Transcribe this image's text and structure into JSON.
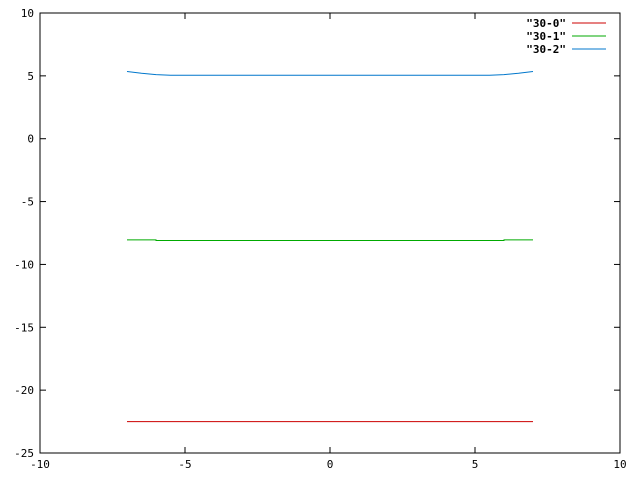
{
  "chart_data": {
    "type": "line",
    "title": "",
    "xlabel": "",
    "ylabel": "",
    "xlim": [
      -10,
      10
    ],
    "ylim": [
      -25,
      10
    ],
    "x_ticks": [
      -10,
      -5,
      0,
      5,
      10
    ],
    "x_tick_labels": [
      "-10",
      "-5",
      "0",
      "5",
      "10"
    ],
    "y_ticks": [
      10,
      5,
      0,
      -5,
      -10,
      -15,
      -20,
      -25
    ],
    "y_tick_labels": [
      "10",
      "5",
      "0",
      "-5",
      "-10",
      "-15",
      "-20",
      "-25"
    ],
    "grid": false,
    "legend_position": "top-right",
    "series": [
      {
        "name": "\"30-0\"",
        "color": "#cc0000",
        "points": [
          [
            -7,
            -22.5
          ],
          [
            7,
            -22.5
          ]
        ]
      },
      {
        "name": "\"30-1\"",
        "color": "#00aa00",
        "points": [
          [
            -7,
            -8.05
          ],
          [
            -6,
            -8.05
          ],
          [
            -6,
            -8.1
          ],
          [
            6,
            -8.1
          ],
          [
            6,
            -8.05
          ],
          [
            7,
            -8.05
          ]
        ]
      },
      {
        "name": "\"30-2\"",
        "color": "#0077cc",
        "points": [
          [
            -7,
            5.35
          ],
          [
            -6.5,
            5.2
          ],
          [
            -6,
            5.1
          ],
          [
            -5.5,
            5.05
          ],
          [
            -5,
            5.05
          ],
          [
            -4,
            5.05
          ],
          [
            -3,
            5.05
          ],
          [
            -2,
            5.05
          ],
          [
            -1,
            5.05
          ],
          [
            0,
            5.05
          ],
          [
            1,
            5.05
          ],
          [
            2,
            5.05
          ],
          [
            3,
            5.05
          ],
          [
            4,
            5.05
          ],
          [
            5,
            5.05
          ],
          [
            5.5,
            5.05
          ],
          [
            6,
            5.1
          ],
          [
            6.5,
            5.2
          ],
          [
            7,
            5.35
          ]
        ]
      }
    ]
  }
}
